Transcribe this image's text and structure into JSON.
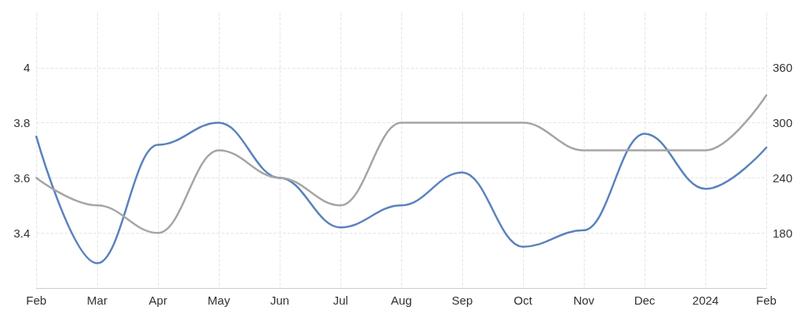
{
  "chart_data": {
    "type": "line",
    "categories": [
      "Feb",
      "Mar",
      "Apr",
      "May",
      "Jun",
      "Jul",
      "Aug",
      "Sep",
      "Oct",
      "Nov",
      "Dec",
      "2024",
      "Feb"
    ],
    "series": [
      {
        "color": "#5a82bd",
        "values": [
          3.75,
          3.29,
          3.72,
          3.8,
          3.6,
          3.42,
          3.5,
          3.62,
          3.35,
          3.41,
          3.76,
          3.56,
          3.71
        ]
      },
      {
        "color": "#a5a5a5",
        "axis": "y2",
        "values": [
          240,
          210,
          180,
          270,
          240,
          210,
          300,
          300,
          300,
          270,
          270,
          270,
          330
        ]
      }
    ],
    "ylim": [
      3.2,
      4.2
    ],
    "yticks": [
      3.4,
      3.6,
      3.8,
      4
    ],
    "y2lim": [
      120,
      420
    ],
    "y2ticks": [
      180,
      240,
      300,
      360
    ],
    "grid": true,
    "marker": "none",
    "line_style": "solid"
  }
}
